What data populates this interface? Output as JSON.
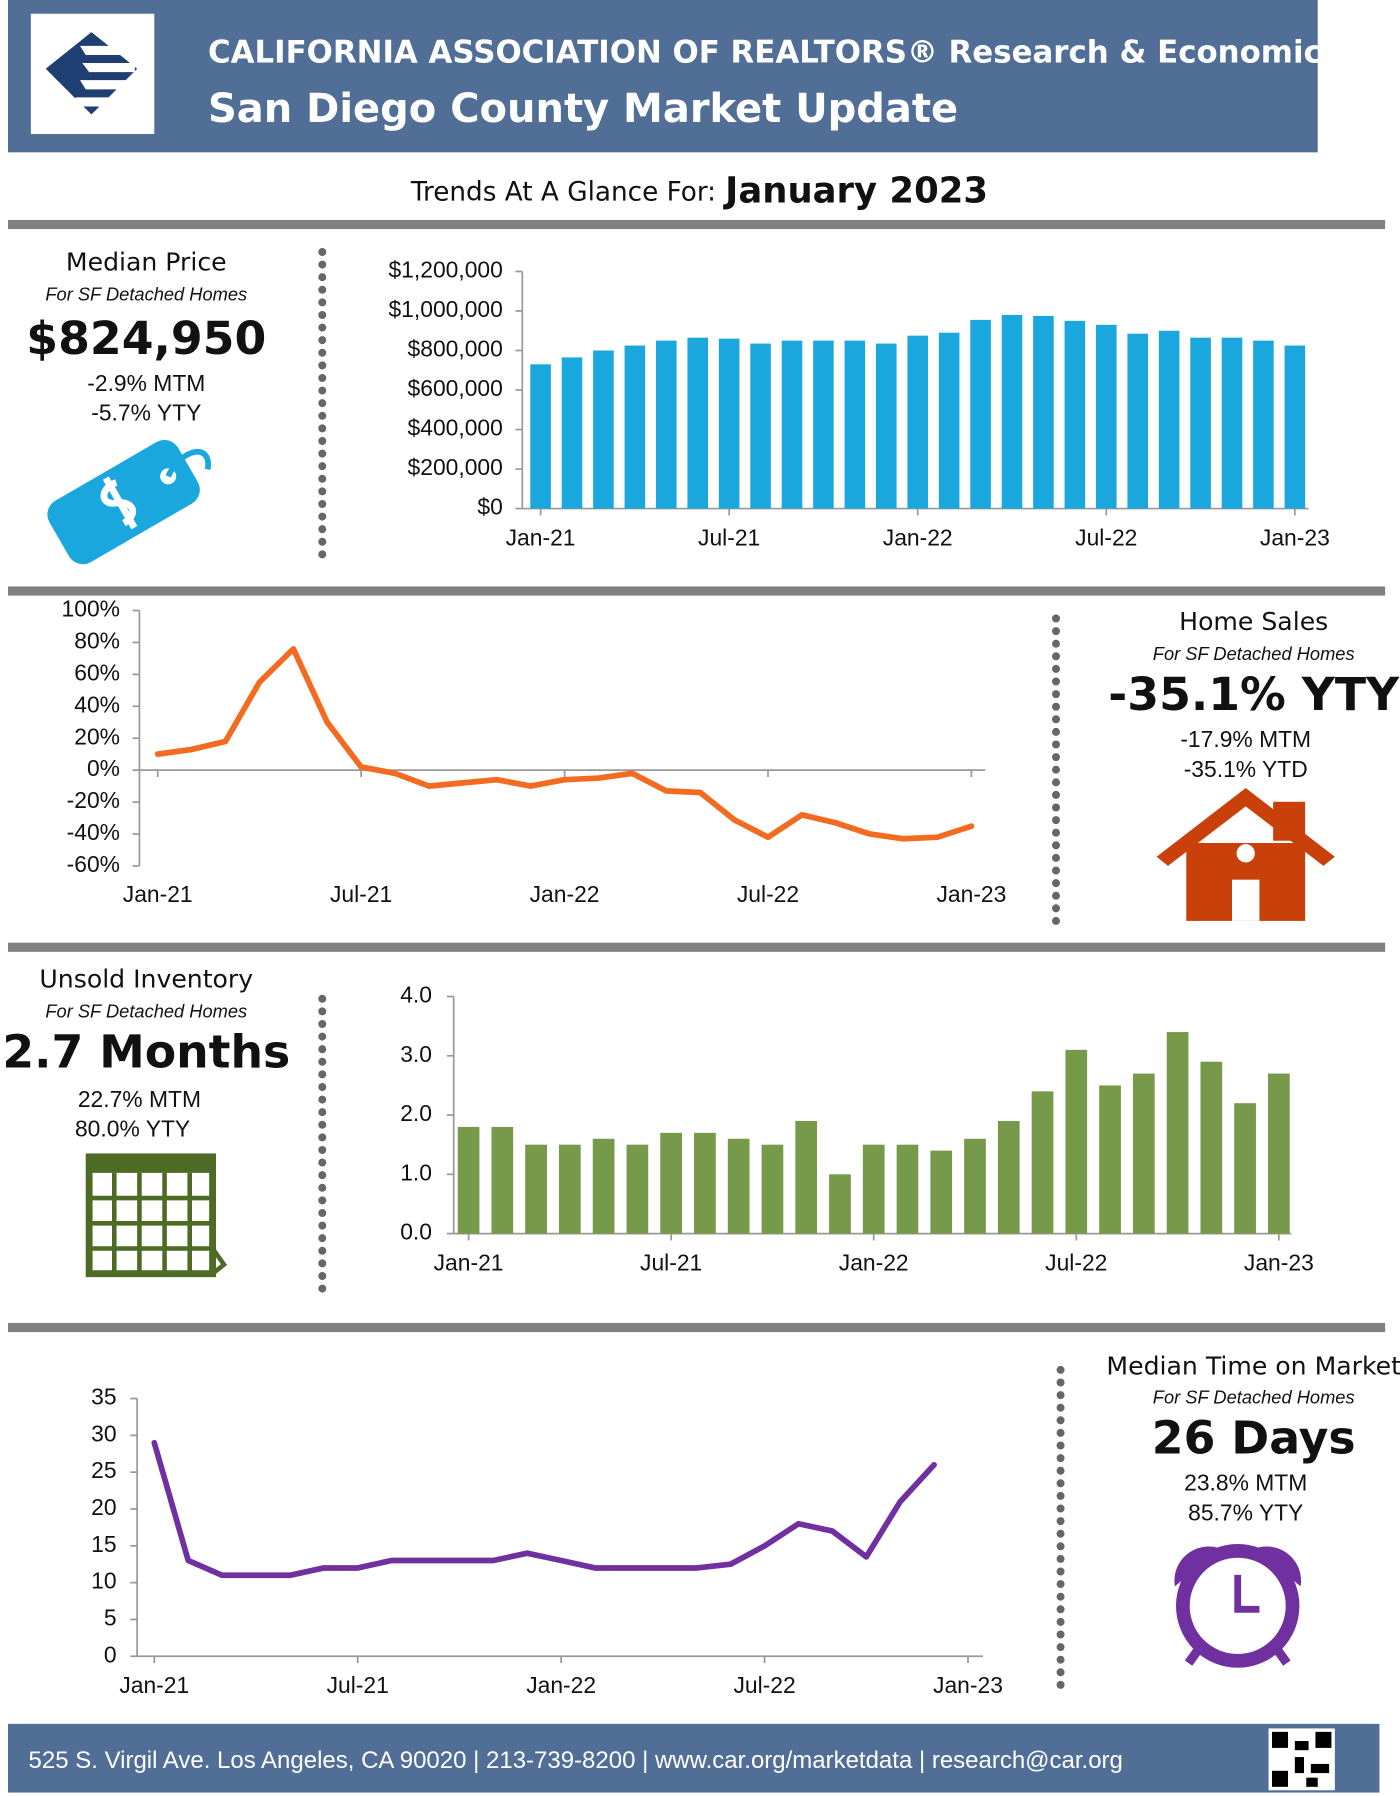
{
  "header": {
    "title": "CALIFORNIA ASSOCIATION OF REALTORS® Research & Economics",
    "subtitle": "San Diego County Market Update"
  },
  "trends": {
    "label": "Trends At A Glance For:",
    "period": "January 2023"
  },
  "panels": [
    {
      "title": "Median Price",
      "subtitle": "For SF Detached Homes",
      "headline": "$824,950",
      "lines": [
        "-2.9% MTM",
        "-5.7% YTY"
      ]
    },
    {
      "title": "Home Sales",
      "subtitle": "For SF Detached Homes",
      "headline": "-35.1% YTY",
      "lines": [
        "-17.9% MTM",
        "-35.1% YTD"
      ]
    },
    {
      "title": "Unsold Inventory",
      "subtitle": "For SF Detached Homes",
      "headline": "2.7 Months",
      "lines": [
        "22.7% MTM",
        "80.0% YTY"
      ]
    },
    {
      "title": "Median Time on Market",
      "subtitle": "For SF Detached Homes",
      "headline": "26 Days",
      "lines": [
        "23.8% MTM",
        "85.7% YTY"
      ]
    }
  ],
  "chart_data": [
    {
      "type": "bar",
      "color": "#1aa7dd",
      "grid": false,
      "categories": [
        "Jan-21",
        null,
        null,
        null,
        null,
        null,
        "Jul-21",
        null,
        null,
        null,
        null,
        null,
        "Jan-22",
        null,
        null,
        null,
        null,
        null,
        "Jul-22",
        null,
        null,
        null,
        null,
        null,
        "Jan-23"
      ],
      "values": [
        730000,
        765000,
        800000,
        825000,
        850000,
        865000,
        860000,
        835000,
        850000,
        850000,
        850000,
        835000,
        875000,
        890000,
        955000,
        980000,
        975000,
        950000,
        930000,
        885000,
        900000,
        865000,
        865000,
        850000,
        824950
      ],
      "ylim": [
        0,
        1200000
      ],
      "yticks": [
        {
          "value": 0,
          "label": "$0"
        },
        {
          "value": 200000,
          "label": "$200,000"
        },
        {
          "value": 400000,
          "label": "$400,000"
        },
        {
          "value": 600000,
          "label": "$600,000"
        },
        {
          "value": 800000,
          "label": "$800,000"
        },
        {
          "value": 1000000,
          "label": "$1,000,000"
        },
        {
          "value": 1200000,
          "label": "$1,200,000"
        }
      ]
    },
    {
      "type": "line",
      "color": "#f26b21",
      "grid": false,
      "categories": [
        "Jan-21",
        null,
        null,
        null,
        null,
        null,
        "Jul-21",
        null,
        null,
        null,
        null,
        null,
        "Jan-22",
        null,
        null,
        null,
        null,
        null,
        "Jul-22",
        null,
        null,
        null,
        null,
        null,
        "Jan-23"
      ],
      "values": [
        10,
        13,
        18,
        55,
        76,
        30,
        2,
        -2,
        -10,
        -8,
        -6,
        -10,
        -6,
        -5,
        -2,
        -13,
        -14,
        -31,
        -42,
        -28,
        -33,
        -40,
        -43,
        -42,
        -35.1
      ],
      "ylim": [
        -60,
        100
      ],
      "yticks": [
        {
          "value": -60,
          "label": "-60%"
        },
        {
          "value": -40,
          "label": "-40%"
        },
        {
          "value": -20,
          "label": "-20%"
        },
        {
          "value": 0,
          "label": "0%"
        },
        {
          "value": 20,
          "label": "20%"
        },
        {
          "value": 40,
          "label": "40%"
        },
        {
          "value": 60,
          "label": "60%"
        },
        {
          "value": 80,
          "label": "80%"
        },
        {
          "value": 100,
          "label": "100%"
        }
      ]
    },
    {
      "type": "bar",
      "color": "#77994a",
      "grid": false,
      "categories": [
        "Jan-21",
        null,
        null,
        null,
        null,
        null,
        "Jul-21",
        null,
        null,
        null,
        null,
        null,
        "Jan-22",
        null,
        null,
        null,
        null,
        null,
        "Jul-22",
        null,
        null,
        null,
        null,
        null,
        "Jan-23"
      ],
      "values": [
        1.8,
        1.8,
        1.5,
        1.5,
        1.6,
        1.5,
        1.7,
        1.7,
        1.6,
        1.5,
        1.9,
        1.0,
        1.5,
        1.5,
        1.4,
        1.6,
        1.9,
        2.4,
        3.1,
        2.5,
        2.7,
        3.4,
        2.9,
        2.2,
        2.7
      ],
      "ylim": [
        0,
        4
      ],
      "yticks": [
        {
          "value": 0,
          "label": "0.0"
        },
        {
          "value": 1,
          "label": "1.0"
        },
        {
          "value": 2,
          "label": "2.0"
        },
        {
          "value": 3,
          "label": "3.0"
        },
        {
          "value": 4,
          "label": "4.0"
        }
      ]
    },
    {
      "type": "line",
      "color": "#7030a0",
      "grid": false,
      "categories": [
        "Jan-21",
        null,
        null,
        null,
        null,
        null,
        "Jul-21",
        null,
        null,
        null,
        null,
        null,
        "Jan-22",
        null,
        null,
        null,
        null,
        null,
        "Jul-22",
        null,
        null,
        null,
        null,
        null,
        "Jan-23"
      ],
      "values": [
        29,
        13,
        11,
        11,
        11,
        12,
        12,
        13,
        13,
        13,
        13,
        14,
        13,
        12,
        12,
        12,
        12,
        12.5,
        15,
        18,
        17,
        13.5,
        21,
        26,
        null
      ],
      "ylim": [
        0,
        35
      ],
      "yticks": [
        0,
        5,
        10,
        15,
        20,
        25,
        30,
        35
      ]
    }
  ],
  "footer": "525 S. Virgil Ave. Los Angeles, CA 90020 | 213-739-8200 | www.car.org/marketdata | research@car.org"
}
